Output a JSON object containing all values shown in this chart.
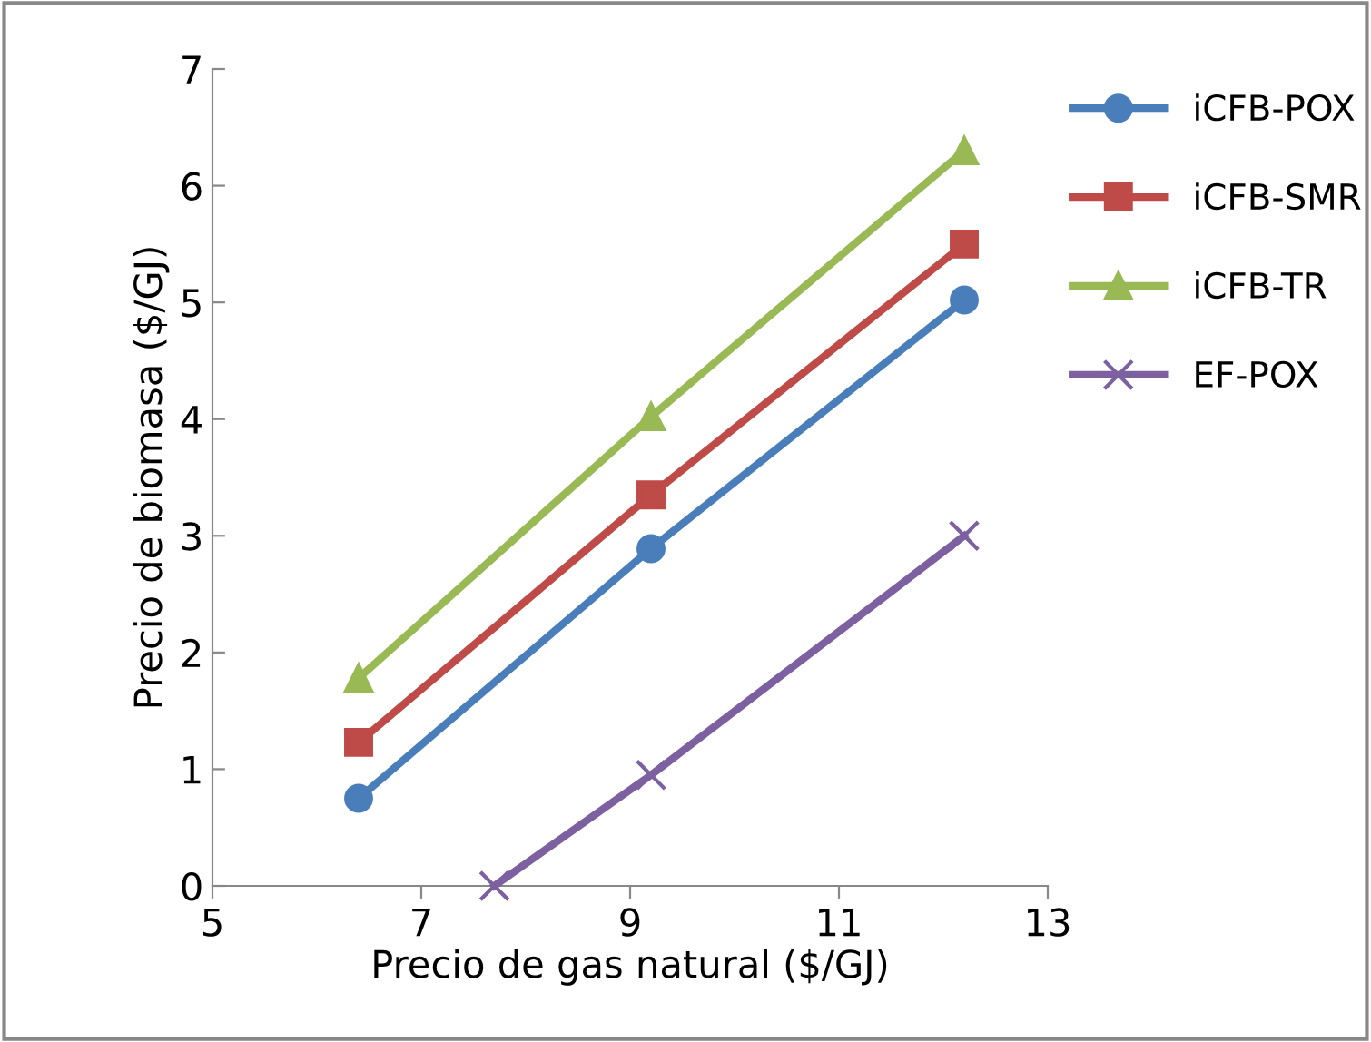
{
  "chart_data": {
    "type": "line",
    "xlabel": "Precio de gas natural ($/GJ)",
    "ylabel": "Precio de biomasa ($/GJ)",
    "xlim": [
      5,
      13
    ],
    "xticks": [
      5,
      7,
      9,
      11,
      13
    ],
    "ylim": [
      0,
      7
    ],
    "yticks": [
      0,
      1,
      2,
      3,
      4,
      5,
      6,
      7
    ],
    "grid": false,
    "legend": "right",
    "line_style": "solid",
    "series": [
      {
        "name": "iCFB-POX",
        "color": "#4a7ebb",
        "marker": "circle",
        "x": [
          6.4,
          9.2,
          12.2
        ],
        "values": [
          0.75,
          2.89,
          5.02
        ]
      },
      {
        "name": "iCFB-SMR",
        "color": "#be4b48",
        "marker": "square",
        "x": [
          6.4,
          9.2,
          12.2
        ],
        "values": [
          1.23,
          3.35,
          5.5
        ]
      },
      {
        "name": "iCFB-TR",
        "color": "#98b954",
        "marker": "triangle",
        "x": [
          6.4,
          9.2,
          12.2
        ],
        "values": [
          1.78,
          4.02,
          6.3
        ]
      },
      {
        "name": "EF-POX",
        "color": "#7d60a0",
        "marker": "cross",
        "x": [
          7.7,
          9.2,
          12.2
        ],
        "values": [
          0,
          0.95,
          3.0
        ]
      }
    ]
  }
}
